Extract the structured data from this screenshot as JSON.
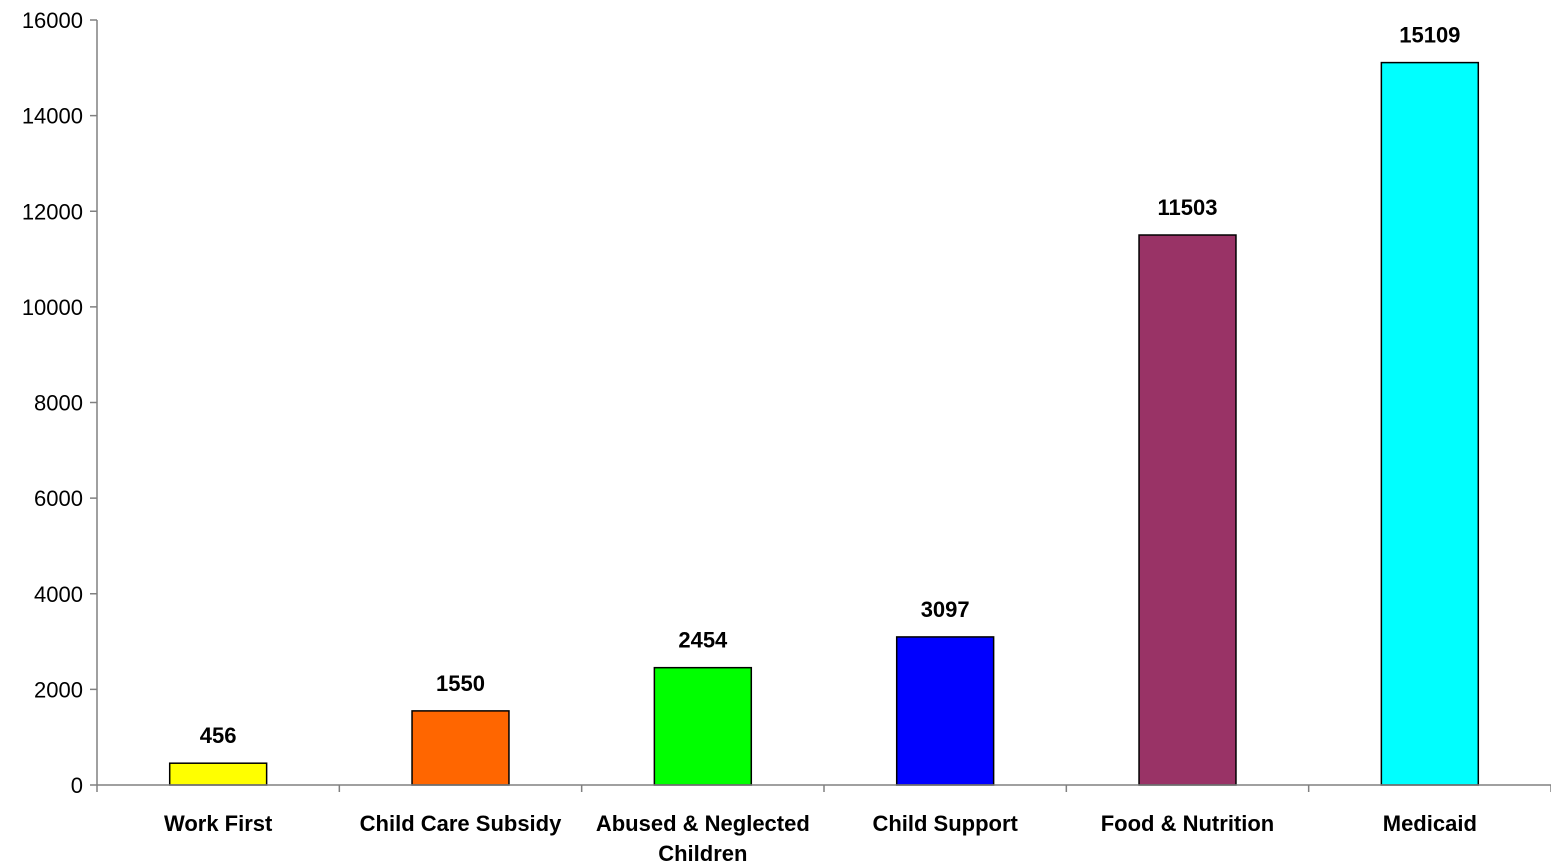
{
  "chart_data": {
    "type": "bar",
    "title": "",
    "xlabel": "",
    "ylabel": "",
    "ylim": [
      0,
      16000
    ],
    "yticks": [
      0,
      2000,
      4000,
      6000,
      8000,
      10000,
      12000,
      14000,
      16000
    ],
    "grid": false,
    "legend": "none",
    "categories": [
      [
        "Work First"
      ],
      [
        "Child Care Subsidy"
      ],
      [
        "Abused & Neglected",
        "Children"
      ],
      [
        "Child Support"
      ],
      [
        "Food & Nutrition"
      ],
      [
        "Medicaid"
      ]
    ],
    "values": [
      456,
      1550,
      2454,
      3097,
      11503,
      15109
    ],
    "colors": [
      "#FFFF00",
      "#FF6600",
      "#00FF00",
      "#0000FF",
      "#993366",
      "#00FFFF"
    ]
  }
}
